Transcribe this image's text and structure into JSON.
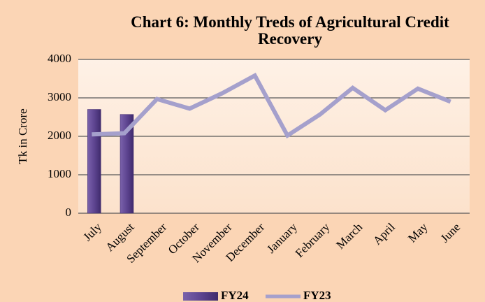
{
  "chart_data": {
    "type": "combo",
    "title": "Chart 6: Monthly Treds of Agricultural  Credit Recovery",
    "y_label": "Tk in Crore",
    "categories": [
      "July",
      "August",
      "September",
      "October",
      "November",
      "December",
      "January",
      "February",
      "March",
      "April",
      "May",
      "June"
    ],
    "series": [
      {
        "name": "FY24",
        "type": "bar",
        "color": "#5e4591",
        "values": [
          2700,
          2570,
          null,
          null,
          null,
          null,
          null,
          null,
          null,
          null,
          null,
          null
        ]
      },
      {
        "name": "FY23",
        "type": "line",
        "color": "#a5a0cc",
        "values": [
          2050,
          2080,
          2970,
          2720,
          3120,
          3580,
          2020,
          2570,
          3260,
          2680,
          3240,
          2900
        ]
      }
    ],
    "ylim": [
      0,
      4000
    ],
    "yticks": [
      0,
      1000,
      2000,
      3000,
      4000
    ],
    "grid": true,
    "legend": "bottom"
  }
}
